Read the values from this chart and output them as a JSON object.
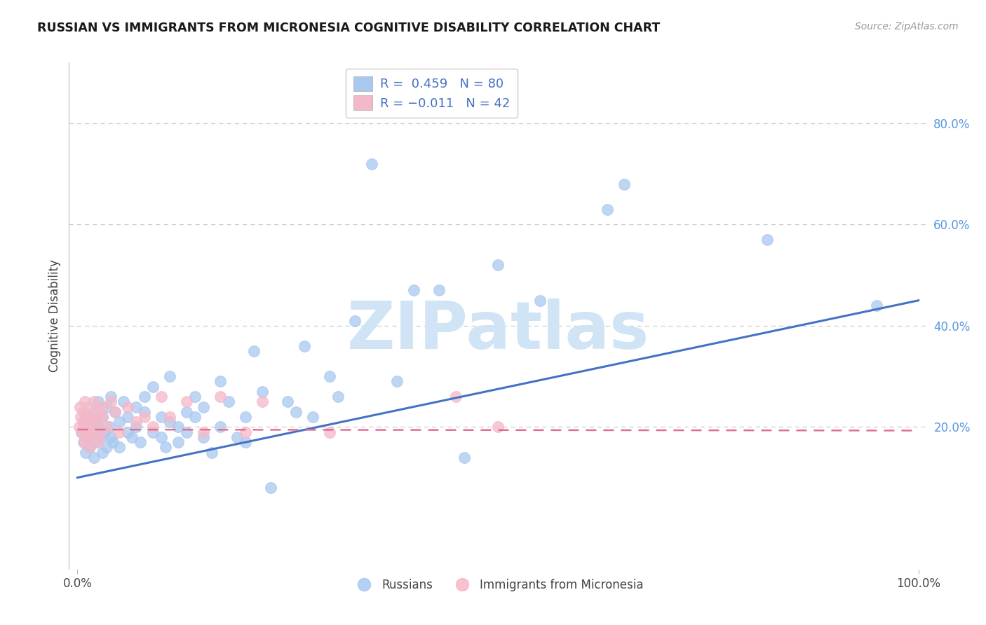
{
  "title": "RUSSIAN VS IMMIGRANTS FROM MICRONESIA COGNITIVE DISABILITY CORRELATION CHART",
  "source": "Source: ZipAtlas.com",
  "ylabel": "Cognitive Disability",
  "legend_label1": "Russians",
  "legend_label2": "Immigrants from Micronesia",
  "blue_scatter_color": "#A8C8F0",
  "pink_scatter_color": "#F5B8C8",
  "blue_line_color": "#4472C4",
  "pink_line_color": "#E07090",
  "grid_color": "#CCCCCC",
  "right_tick_color": "#5599DD",
  "background": "#FFFFFF",
  "watermark_text": "ZIPatlas",
  "watermark_color": "#D0E4F5",
  "legend_text_color": "#4472C4",
  "xlim": [
    0.0,
    1.0
  ],
  "ylim": [
    -0.08,
    0.92
  ],
  "blue_line_x0": 0.0,
  "blue_line_y0": 0.1,
  "blue_line_x1": 1.0,
  "blue_line_y1": 0.45,
  "pink_line_x0": 0.0,
  "pink_line_y0": 0.195,
  "pink_line_x1": 1.0,
  "pink_line_y1": 0.193,
  "russians_x": [
    0.005,
    0.007,
    0.008,
    0.01,
    0.01,
    0.012,
    0.015,
    0.015,
    0.018,
    0.02,
    0.02,
    0.022,
    0.022,
    0.025,
    0.025,
    0.028,
    0.03,
    0.03,
    0.032,
    0.035,
    0.035,
    0.038,
    0.04,
    0.04,
    0.042,
    0.045,
    0.05,
    0.05,
    0.055,
    0.06,
    0.06,
    0.065,
    0.07,
    0.07,
    0.075,
    0.08,
    0.08,
    0.09,
    0.09,
    0.1,
    0.1,
    0.105,
    0.11,
    0.11,
    0.12,
    0.12,
    0.13,
    0.13,
    0.14,
    0.14,
    0.15,
    0.15,
    0.16,
    0.17,
    0.17,
    0.18,
    0.19,
    0.2,
    0.2,
    0.21,
    0.22,
    0.23,
    0.25,
    0.26,
    0.27,
    0.28,
    0.3,
    0.31,
    0.33,
    0.35,
    0.38,
    0.4,
    0.43,
    0.46,
    0.5,
    0.55,
    0.63,
    0.65,
    0.82,
    0.95
  ],
  "russians_y": [
    0.19,
    0.17,
    0.21,
    0.15,
    0.22,
    0.18,
    0.16,
    0.2,
    0.19,
    0.14,
    0.23,
    0.17,
    0.21,
    0.2,
    0.25,
    0.18,
    0.22,
    0.15,
    0.19,
    0.16,
    0.24,
    0.2,
    0.18,
    0.26,
    0.17,
    0.23,
    0.21,
    0.16,
    0.25,
    0.19,
    0.22,
    0.18,
    0.24,
    0.2,
    0.17,
    0.23,
    0.26,
    0.19,
    0.28,
    0.18,
    0.22,
    0.16,
    0.3,
    0.21,
    0.2,
    0.17,
    0.23,
    0.19,
    0.26,
    0.22,
    0.18,
    0.24,
    0.15,
    0.2,
    0.29,
    0.25,
    0.18,
    0.22,
    0.17,
    0.35,
    0.27,
    0.08,
    0.25,
    0.23,
    0.36,
    0.22,
    0.3,
    0.26,
    0.41,
    0.72,
    0.29,
    0.47,
    0.47,
    0.14,
    0.52,
    0.45,
    0.63,
    0.68,
    0.57,
    0.44
  ],
  "micronesia_x": [
    0.002,
    0.003,
    0.004,
    0.005,
    0.006,
    0.007,
    0.008,
    0.009,
    0.01,
    0.01,
    0.012,
    0.013,
    0.015,
    0.015,
    0.017,
    0.018,
    0.02,
    0.02,
    0.022,
    0.025,
    0.025,
    0.028,
    0.03,
    0.03,
    0.035,
    0.04,
    0.045,
    0.05,
    0.06,
    0.07,
    0.08,
    0.09,
    0.1,
    0.11,
    0.13,
    0.15,
    0.17,
    0.2,
    0.22,
    0.3,
    0.45,
    0.5
  ],
  "micronesia_y": [
    0.2,
    0.24,
    0.22,
    0.19,
    0.21,
    0.23,
    0.17,
    0.25,
    0.18,
    0.22,
    0.2,
    0.24,
    0.19,
    0.16,
    0.22,
    0.2,
    0.18,
    0.25,
    0.21,
    0.23,
    0.17,
    0.19,
    0.24,
    0.22,
    0.2,
    0.25,
    0.23,
    0.19,
    0.24,
    0.21,
    0.22,
    0.2,
    0.26,
    0.22,
    0.25,
    0.19,
    0.26,
    0.19,
    0.25,
    0.19,
    0.26,
    0.2
  ]
}
